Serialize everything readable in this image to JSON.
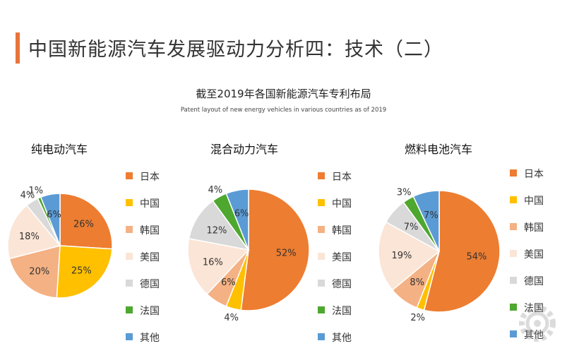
{
  "header": {
    "title": "中国新能源汽车发展驱动力分析四：技术（二）"
  },
  "chart": {
    "title": "截至2019年各国新能源汽车专利布局",
    "subtitle": "Patent layout of new energy vehicles in various countries as of 2019"
  },
  "colors": {
    "日本": "#ed7d31",
    "中国": "#ffc000",
    "韩国": "#f4b183",
    "美国": "#fbe5d6",
    "德国": "#d9d9d9",
    "法国": "#4ea72e",
    "其他": "#5b9bd5"
  },
  "chart_data": [
    {
      "type": "pie",
      "title": "纯电动汽车",
      "labels": [
        "日本",
        "中国",
        "韩国",
        "美国",
        "德国",
        "法国",
        "其他"
      ],
      "values": [
        26,
        25,
        20,
        18,
        4,
        1,
        6
      ],
      "value_suffix": "%",
      "legend_position": "right"
    },
    {
      "type": "pie",
      "title": "混合动力汽车",
      "labels": [
        "日本",
        "中国",
        "韩国",
        "美国",
        "德国",
        "法国",
        "其他"
      ],
      "values": [
        52,
        4,
        6,
        16,
        12,
        4,
        6
      ],
      "value_suffix": "%",
      "legend_position": "right"
    },
    {
      "type": "pie",
      "title": "燃料电池汽车",
      "labels": [
        "日本",
        "中国",
        "韩国",
        "美国",
        "德国",
        "法国",
        "其他"
      ],
      "values": [
        54,
        2,
        8,
        19,
        7,
        3,
        7
      ],
      "value_suffix": "%",
      "legend_position": "right"
    }
  ]
}
